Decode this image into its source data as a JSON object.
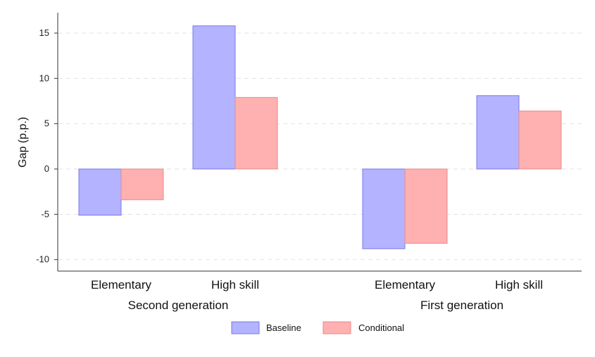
{
  "chart_data": {
    "type": "bar",
    "ylabel": "Gap (p.p.)",
    "ylim": [
      -11,
      18
    ],
    "yticks": [
      -10,
      -5,
      0,
      5,
      10,
      15
    ],
    "grid": true,
    "groups": [
      {
        "label": "Second generation",
        "categories": [
          "Elementary",
          "High skill"
        ]
      },
      {
        "label": "First generation",
        "categories": [
          "Elementary",
          "High skill"
        ]
      }
    ],
    "series": [
      {
        "name": "Baseline",
        "color": "#b3b3ff",
        "stroke": "#7a7ae6",
        "values": [
          -5.1,
          15.8,
          -8.8,
          8.1
        ]
      },
      {
        "name": "Conditional",
        "color": "#ffb0b0",
        "stroke": "#e88a8a",
        "values": [
          -3.4,
          7.9,
          -8.2,
          6.4
        ]
      }
    ],
    "legend_position": "bottom-center"
  }
}
